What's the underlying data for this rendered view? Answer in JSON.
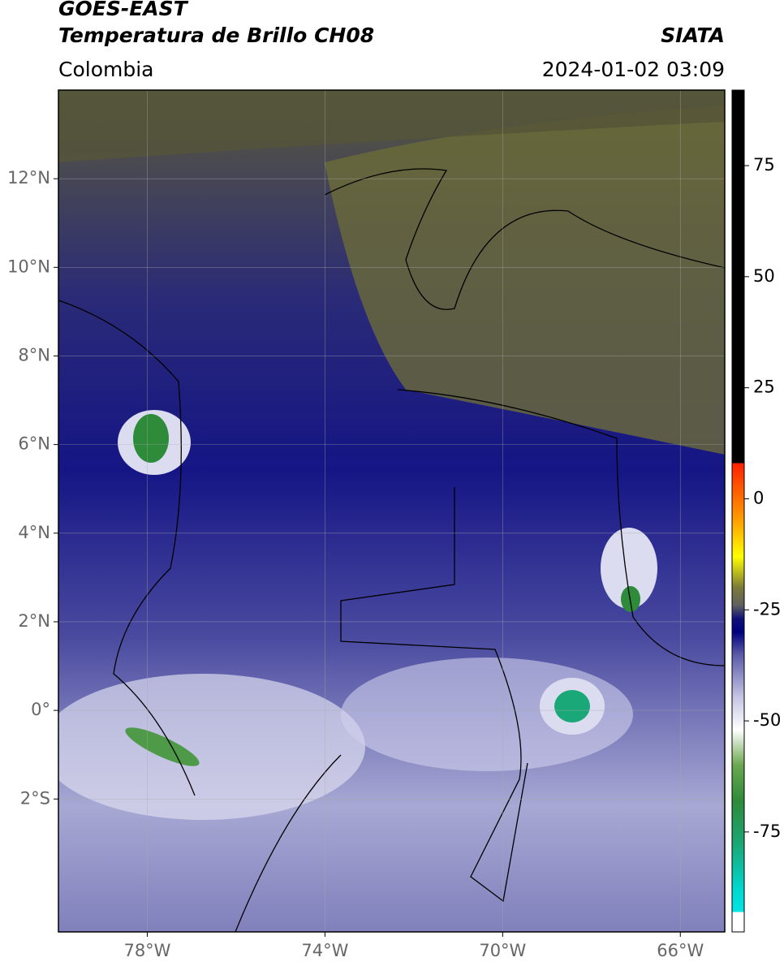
{
  "header": {
    "title": "GOES-EAST",
    "subtitle": "Temperatura de Brillo CH08",
    "source": "SIATA",
    "region": "Colombia",
    "datetime": "2024-01-02 03:09"
  },
  "map": {
    "lonlim": [
      -80,
      -65
    ],
    "latlim": [
      -5,
      14
    ],
    "xticks": [
      {
        "value": -78,
        "label": "78°W"
      },
      {
        "value": -74,
        "label": "74°W"
      },
      {
        "value": -70,
        "label": "70°W"
      },
      {
        "value": -66,
        "label": "66°W"
      }
    ],
    "yticks": [
      {
        "value": 12,
        "label": "12°N"
      },
      {
        "value": 10,
        "label": "10°N"
      },
      {
        "value": 8,
        "label": "8°N"
      },
      {
        "value": 6,
        "label": "6°N"
      },
      {
        "value": 4,
        "label": "4°N"
      },
      {
        "value": 2,
        "label": "2°N"
      },
      {
        "value": 0,
        "label": "0°"
      },
      {
        "value": -2,
        "label": "2°S"
      }
    ],
    "grid": true
  },
  "colorbar": {
    "lim": [
      -97.5,
      92
    ],
    "ticks": [
      75,
      50,
      25,
      0,
      -25,
      -50,
      -75
    ],
    "stops": [
      {
        "value": -97.5,
        "color": "#ffffff"
      },
      {
        "value": -93,
        "color": "#ffffff"
      },
      {
        "value": -93,
        "color": "#00e5e5"
      },
      {
        "value": -88,
        "color": "#00d8d0"
      },
      {
        "value": -78,
        "color": "#1aa878"
      },
      {
        "value": -68,
        "color": "#2e8b3a"
      },
      {
        "value": -60,
        "color": "#6aa84f"
      },
      {
        "value": -52,
        "color": "#ffffff"
      },
      {
        "value": -45,
        "color": "#c8c8e6"
      },
      {
        "value": -35,
        "color": "#5a5aa8"
      },
      {
        "value": -30,
        "color": "#000080"
      },
      {
        "value": -27,
        "color": "#10107a"
      },
      {
        "value": -24,
        "color": "#606060"
      },
      {
        "value": -20,
        "color": "#7a7a3a"
      },
      {
        "value": -13,
        "color": "#ffff00"
      },
      {
        "value": -5,
        "color": "#ffa000"
      },
      {
        "value": 8,
        "color": "#ff2000"
      },
      {
        "value": 8,
        "color": "#000000"
      },
      {
        "value": 92,
        "color": "#000000"
      }
    ]
  }
}
